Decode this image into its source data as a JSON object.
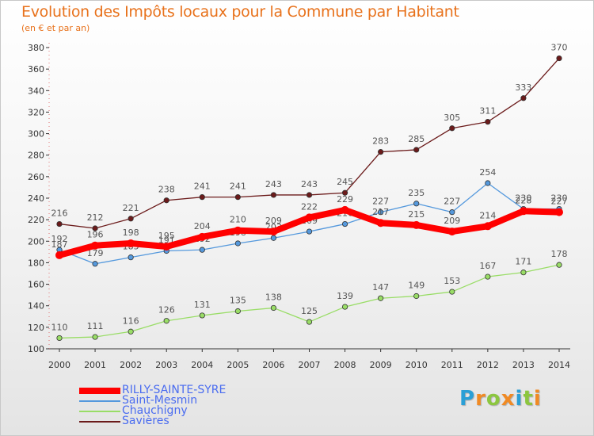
{
  "chart_data": {
    "type": "line",
    "title": "Evolution des Impôts locaux pour la Commune par Habitant",
    "subtitle": "(en € et par an)",
    "x": [
      "2000",
      "2001",
      "2002",
      "2003",
      "2004",
      "2005",
      "2006",
      "2007",
      "2008",
      "2009",
      "2010",
      "2011",
      "2012",
      "2013",
      "2014"
    ],
    "ylim": [
      100,
      380
    ],
    "yticks": [
      100,
      120,
      140,
      160,
      180,
      200,
      220,
      240,
      260,
      280,
      300,
      320,
      340,
      360,
      380
    ],
    "grid": false,
    "legend_position": "bottom-left",
    "series": [
      {
        "name": "Savières",
        "color": "#6b1a1a",
        "values": [
          216,
          212,
          221,
          238,
          241,
          241,
          243,
          243,
          245,
          283,
          285,
          305,
          311,
          333,
          370
        ]
      },
      {
        "name": "Chauchigny",
        "color": "#99dd66",
        "values": [
          110,
          111,
          116,
          126,
          131,
          135,
          138,
          125,
          139,
          147,
          149,
          153,
          167,
          171,
          178
        ]
      },
      {
        "name": "Saint-Mesmin",
        "color": "#5599dd",
        "values": [
          192,
          179,
          185,
          191,
          192,
          198,
          203,
          209,
          216,
          227,
          235,
          227,
          254,
          230,
          230
        ]
      },
      {
        "name": "RILLY-SAINTE-SYRE",
        "color": "#ff0000",
        "values": [
          187,
          196,
          198,
          195,
          204,
          210,
          209,
          222,
          229,
          217,
          215,
          209,
          214,
          228,
          227
        ]
      }
    ]
  },
  "legend": {
    "items": [
      {
        "label": "RILLY-SAINTE-SYRE",
        "color": "#ff0000"
      },
      {
        "label": "Saint-Mesmin",
        "color": "#5599dd"
      },
      {
        "label": "Chauchigny",
        "color": "#99dd66"
      },
      {
        "label": "Savières",
        "color": "#6b1a1a"
      }
    ]
  },
  "logo": {
    "letters": [
      "P",
      "r",
      "o",
      "x",
      "i",
      "t",
      "i"
    ],
    "colors": [
      "#2a9fd6",
      "#f08a24",
      "#8cc63f",
      "#f08a24",
      "#2a9fd6",
      "#8cc63f",
      "#f08a24"
    ]
  },
  "colors": {
    "title": "#e8721c",
    "axis": "#333333",
    "value_label": "#555555",
    "legend_text": "#4a6cf0"
  }
}
